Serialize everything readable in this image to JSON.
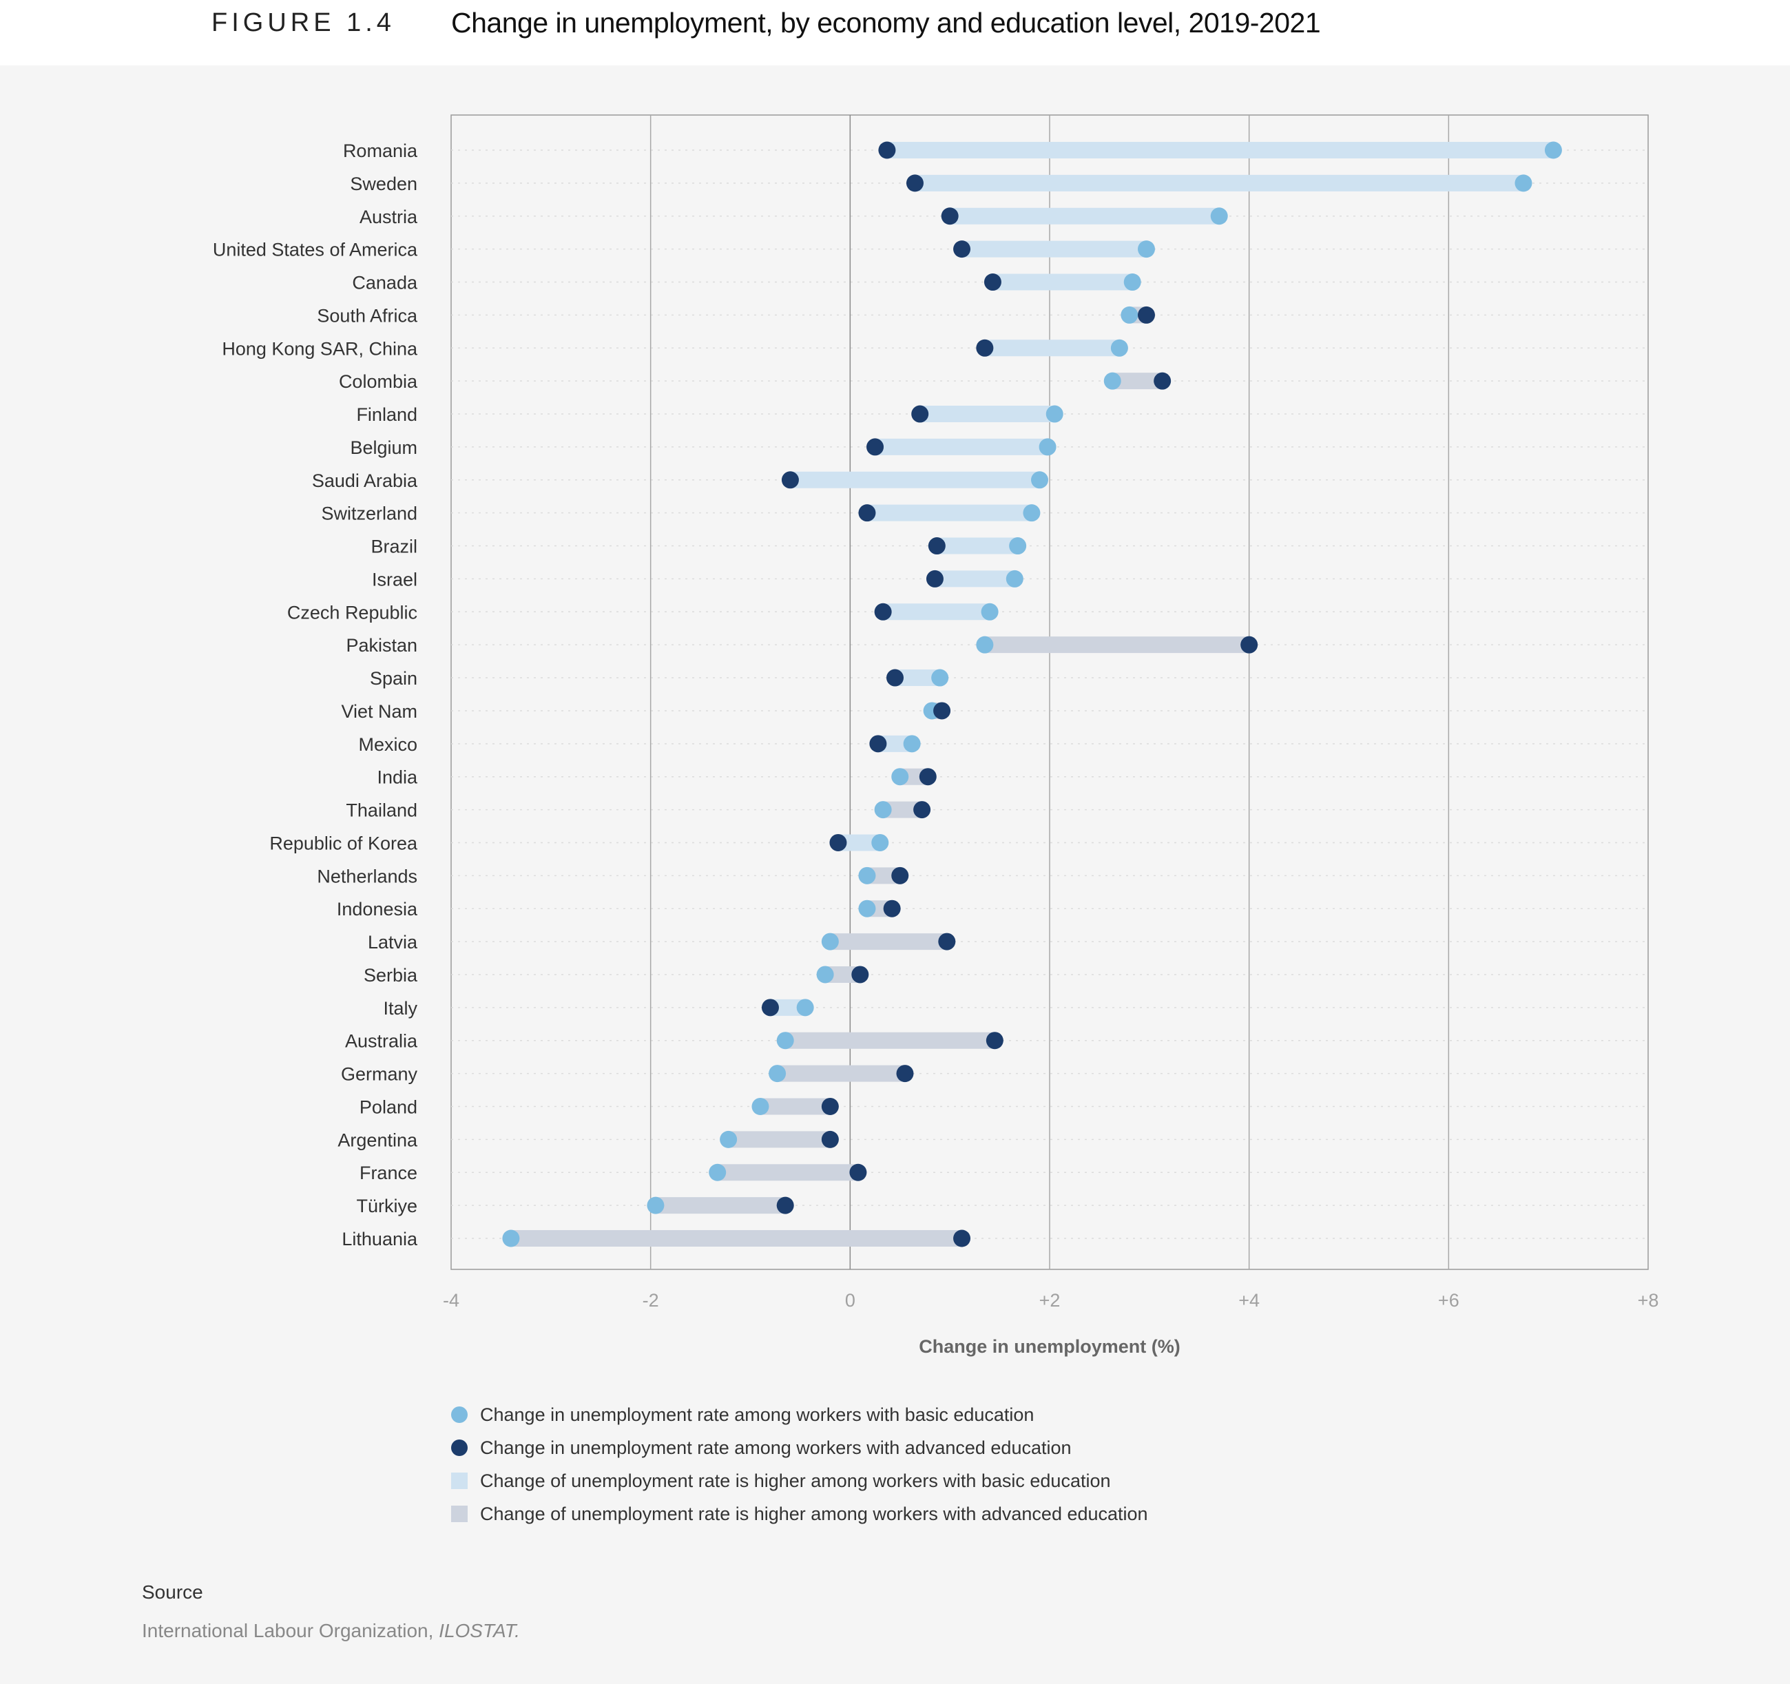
{
  "figure": {
    "label": "FIGURE 1.4",
    "title": "Change in unemployment, by economy and education level, 2019-2021"
  },
  "source": {
    "heading": "Source",
    "text": "International Labour Organization, ",
    "italic": "ILOSTAT."
  },
  "colors": {
    "basic_dot": "#7dbbe0",
    "advanced_dot": "#1c3c6b",
    "basic_higher_bar": "#cfe2f1",
    "advanced_higher_bar": "#cdd3de"
  },
  "chart_data": {
    "type": "dumbbell",
    "xlabel": "Change in unemployment (%)",
    "xlim": [
      -4,
      8
    ],
    "xticks": [
      -4,
      -2,
      0,
      2,
      4,
      6,
      8
    ],
    "xtick_labels": [
      "-4",
      "-2",
      "0",
      "+2",
      "+4",
      "+6",
      "+8"
    ],
    "grid": true,
    "legend_position": "bottom",
    "legend": [
      "Change in unemployment rate among workers with basic education",
      "Change in unemployment rate among workers with advanced education",
      "Change of unemployment rate is higher among workers with basic education",
      "Change of unemployment rate is higher among workers with advanced education"
    ],
    "categories": [
      "Romania",
      "Sweden",
      "Austria",
      "United States of America",
      "Canada",
      "South Africa",
      "Hong Kong SAR, China",
      "Colombia",
      "Finland",
      "Belgium",
      "Saudi Arabia",
      "Switzerland",
      "Brazil",
      "Israel",
      "Czech Republic",
      "Pakistan",
      "Spain",
      "Viet Nam",
      "Mexico",
      "India",
      "Thailand",
      "Republic of Korea",
      "Netherlands",
      "Indonesia",
      "Latvia",
      "Serbia",
      "Italy",
      "Australia",
      "Germany",
      "Poland",
      "Argentina",
      "France",
      "Türkiye",
      "Lithuania"
    ],
    "series": [
      {
        "name": "Change in unemployment rate among workers with basic education",
        "values": [
          7.05,
          6.75,
          3.7,
          2.97,
          2.83,
          2.8,
          2.7,
          2.63,
          2.05,
          1.98,
          1.9,
          1.82,
          1.68,
          1.65,
          1.4,
          1.35,
          0.9,
          0.82,
          0.62,
          0.5,
          0.33,
          0.3,
          0.17,
          0.17,
          -0.2,
          -0.25,
          -0.45,
          -0.65,
          -0.73,
          -0.9,
          -1.22,
          -1.33,
          -1.95,
          -3.4
        ]
      },
      {
        "name": "Change in unemployment rate among workers with advanced education",
        "values": [
          0.37,
          0.65,
          1.0,
          1.12,
          1.43,
          2.97,
          1.35,
          3.13,
          0.7,
          0.25,
          -0.6,
          0.17,
          0.87,
          0.85,
          0.33,
          4.0,
          0.45,
          0.92,
          0.28,
          0.78,
          0.72,
          -0.12,
          0.5,
          0.42,
          0.97,
          0.1,
          -0.8,
          1.45,
          0.55,
          -0.2,
          -0.2,
          0.08,
          -0.65,
          1.12
        ]
      }
    ]
  }
}
